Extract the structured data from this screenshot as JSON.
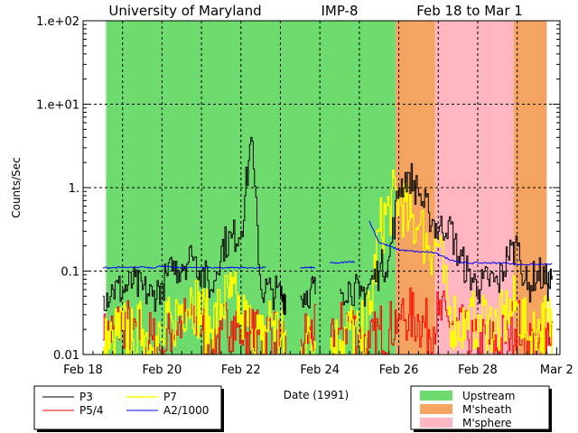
{
  "chart_data": {
    "type": "line",
    "title_parts": [
      "University of Maryland",
      "IMP-8",
      "Feb 18 to Mar 1"
    ],
    "xlabel": "Date (1991)",
    "ylabel": "Counts/Sec",
    "yscale": "log",
    "ylim": [
      0.01,
      100
    ],
    "xlim": [
      "1991-02-18 00:00",
      "1991-03-02 02:00"
    ],
    "grid": "dashed, daily verticals and per-decade horizontals",
    "y_tick_labels": [
      "1.e+02",
      "1.e+01",
      "1.",
      "0.1",
      "0.01"
    ],
    "y_tick_values": [
      100,
      10,
      1,
      0.1,
      0.01
    ],
    "x_tick_labels": [
      "Feb 18",
      "Feb 20",
      "Feb 22",
      "Feb 24",
      "Feb 26",
      "Feb 28",
      "Mar 2"
    ],
    "x_tick_dates": [
      "1991-02-18",
      "1991-02-20",
      "1991-02-22",
      "1991-02-24",
      "1991-02-26",
      "1991-02-28",
      "1991-03-02"
    ],
    "x": [
      "1991-02-18 12:00",
      "1991-02-18 18:00",
      "1991-02-19 00:00",
      "1991-02-19 06:00",
      "1991-02-19 12:00",
      "1991-02-19 18:00",
      "1991-02-20 00:00",
      "1991-02-20 06:00",
      "1991-02-20 12:00",
      "1991-02-20 18:00",
      "1991-02-21 00:00",
      "1991-02-21 06:00",
      "1991-02-21 12:00",
      "1991-02-21 18:00",
      "1991-02-22 00:00",
      "1991-02-22 06:00",
      "1991-02-22 12:00",
      "1991-02-22 18:00",
      "1991-02-23 00:00",
      "1991-02-23 06:00",
      "1991-02-23 12:00",
      "1991-02-23 18:00",
      "1991-02-24 00:00",
      "1991-02-24 06:00",
      "1991-02-24 12:00",
      "1991-02-24 18:00",
      "1991-02-25 00:00",
      "1991-02-25 06:00",
      "1991-02-25 12:00",
      "1991-02-25 18:00",
      "1991-02-26 00:00",
      "1991-02-26 06:00",
      "1991-02-26 12:00",
      "1991-02-26 18:00",
      "1991-02-27 00:00",
      "1991-02-27 06:00",
      "1991-02-27 12:00",
      "1991-02-27 18:00",
      "1991-02-28 00:00",
      "1991-02-28 06:00",
      "1991-02-28 12:00",
      "1991-02-28 18:00",
      "1991-03-01 00:00",
      "1991-03-01 06:00",
      "1991-03-01 12:00",
      "1991-03-01 18:00"
    ],
    "series": [
      {
        "name": "P3",
        "color": "#000000",
        "values": [
          0.05,
          0.06,
          0.06,
          0.07,
          0.06,
          0.05,
          0.07,
          0.1,
          0.12,
          0.15,
          0.1,
          0.06,
          0.2,
          0.25,
          0.3,
          4.0,
          0.06,
          0.06,
          0.05,
          null,
          0.05,
          0.06,
          null,
          null,
          0.06,
          0.07,
          0.05,
          0.07,
          0.1,
          0.15,
          1.0,
          1.5,
          0.8,
          0.5,
          0.3,
          0.4,
          0.15,
          0.1,
          0.06,
          0.08,
          0.07,
          0.15,
          0.2,
          0.06,
          0.1,
          0.07
        ]
      },
      {
        "name": "P5/4",
        "color": "#ff0000",
        "values": [
          0.015,
          0.02,
          0.025,
          0.02,
          0.018,
          0.015,
          0.012,
          0.02,
          0.025,
          0.03,
          0.02,
          0.015,
          0.02,
          0.025,
          0.02,
          0.018,
          0.015,
          0.02,
          0.012,
          null,
          0.015,
          0.018,
          null,
          0.012,
          0.02,
          0.025,
          0.015,
          0.012,
          0.02,
          0.02,
          0.03,
          0.03,
          0.025,
          0.02,
          0.03,
          0.025,
          0.02,
          0.015,
          0.012,
          0.015,
          0.012,
          0.02,
          0.025,
          0.015,
          0.012,
          0.02
        ]
      },
      {
        "name": "P7",
        "color": "#ffff00",
        "values": [
          0.012,
          0.015,
          0.02,
          0.015,
          0.02,
          0.012,
          0.015,
          0.025,
          0.04,
          0.05,
          0.03,
          0.02,
          0.04,
          0.05,
          0.03,
          0.02,
          0.015,
          0.03,
          0.015,
          null,
          0.012,
          0.015,
          null,
          0.012,
          0.015,
          0.02,
          0.015,
          0.03,
          0.3,
          0.6,
          0.8,
          0.4,
          0.35,
          0.2,
          0.2,
          0.03,
          0.025,
          0.02,
          0.03,
          0.025,
          0.02,
          0.03,
          0.04,
          0.015,
          0.02,
          0.025
        ]
      },
      {
        "name": "A2/1000",
        "color": "#0000ff",
        "values": [
          0.11,
          0.11,
          0.11,
          0.11,
          0.112,
          0.11,
          0.115,
          0.11,
          0.11,
          0.11,
          0.11,
          0.11,
          0.11,
          0.11,
          0.11,
          0.11,
          0.11,
          null,
          null,
          null,
          0.11,
          0.11,
          null,
          0.125,
          0.125,
          0.13,
          null,
          0.4,
          0.22,
          0.2,
          0.18,
          0.175,
          0.17,
          0.17,
          0.16,
          0.14,
          0.13,
          0.125,
          0.125,
          0.125,
          0.125,
          0.125,
          0.12,
          0.12,
          0.12,
          0.12
        ]
      }
    ],
    "regions": [
      {
        "name": "Upstream",
        "start": "1991-02-18 14:00",
        "end": "1991-02-25 22:00",
        "color": "#6ddb6d"
      },
      {
        "name": "M'sheath",
        "start": "1991-02-25 22:00",
        "end": "1991-02-26 22:00",
        "color": "#f4a460"
      },
      {
        "name": "M'sphere",
        "start": "1991-02-26 22:00",
        "end": "1991-02-28 22:00",
        "color": "#ffb6c1"
      },
      {
        "name": "M'sheath",
        "start": "1991-02-28 22:00",
        "end": "1991-03-01 18:00",
        "color": "#f4a460"
      }
    ],
    "legend_series": [
      "P3",
      "P7",
      "P5/4",
      "A2/1000"
    ],
    "legend_regions": [
      "Upstream",
      "M'sheath",
      "M'sphere"
    ],
    "legend_placement": "bottom"
  }
}
